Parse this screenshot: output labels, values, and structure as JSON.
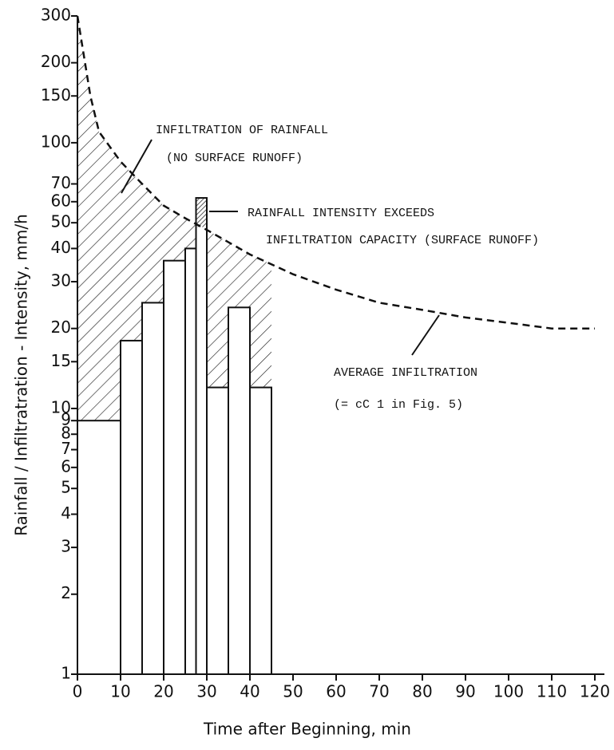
{
  "chart_data": {
    "type": "histogram",
    "xlabel": "Time after Beginning, min",
    "ylabel": "Rainfall / Infiltratration - Intensity, mm/h",
    "bins": [
      0,
      10,
      15,
      20,
      25,
      27.5,
      30,
      35,
      40,
      45
    ],
    "values": [
      9,
      18,
      25,
      36,
      40,
      62,
      12,
      24,
      12
    ],
    "curve": {
      "name": "AVERAGE INFILTRATION",
      "x": [
        0,
        3,
        5,
        10,
        15,
        20,
        25,
        30,
        40,
        50,
        60,
        70,
        80,
        90,
        100,
        110,
        120
      ],
      "values": [
        300,
        150,
        110,
        85,
        70,
        58,
        52,
        47,
        38,
        32,
        28,
        25,
        23.5,
        22,
        21,
        20,
        20
      ]
    },
    "xlim": [
      0,
      120
    ],
    "xticks": [
      0,
      10,
      20,
      30,
      40,
      50,
      60,
      70,
      80,
      90,
      100,
      110,
      120
    ],
    "ylim": [
      1,
      300
    ],
    "ylog": true,
    "yticks": [
      1,
      2,
      3,
      4,
      5,
      6,
      7,
      8,
      9,
      10,
      15,
      20,
      30,
      40,
      50,
      60,
      70,
      100,
      150,
      200,
      300
    ],
    "annotations": [
      "INFILTRATION OF RAINFALL",
      "(NO SURFACE RUNOFF)",
      "RAINFALL INTENSITY EXCEEDS",
      "INFILTRATION CAPACITY (SURFACE RUNOFF)",
      "AVERAGE INFILTRATION",
      "(= cC 1 in Fig. 5)"
    ]
  }
}
